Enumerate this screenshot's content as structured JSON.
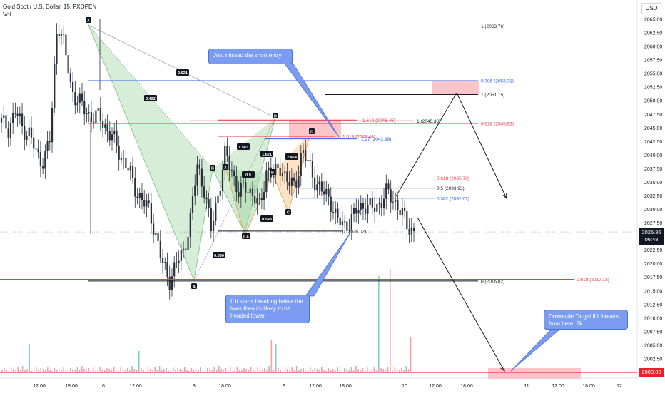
{
  "header": {
    "symbol_line": "Gold Spot / U.S. Dollar, 15, FXOPEN",
    "vol_label": "Vol",
    "currency": "USD"
  },
  "price_tag": {
    "price": "2025.86",
    "countdown": "06:48"
  },
  "floor_tag": "2000.00",
  "colors": {
    "candle": "#2a2e39",
    "fib_blue": "#2962ff",
    "fib_red": "#f23645",
    "pattern_green": "#a5d6a7",
    "pattern_orange": "#ffcc99",
    "zone_pink": "#f8bbc0",
    "callout_blue": "#7b9cf0",
    "volume_red": "#ef5350",
    "volume_green": "#26a69a"
  },
  "chart_data": {
    "type": "candlestick",
    "y_axis": {
      "min": 2000,
      "max": 2065,
      "ticks": [
        "2065.00",
        "2062.50",
        "2060.00",
        "2057.50",
        "2055.00",
        "2052.50",
        "2050.00",
        "2047.50",
        "2045.00",
        "2042.50",
        "2040.00",
        "2037.50",
        "2035.00",
        "2032.50",
        "2030.00",
        "2027.50",
        "2025.00",
        "2022.50",
        "2020.00",
        "2017.50",
        "2015.00",
        "2012.50",
        "2010.00",
        "2007.50",
        "2005.00",
        "2002.50",
        "2000.00"
      ]
    },
    "x_axis": {
      "ticks": [
        "12:00",
        "18:00",
        "6",
        "12:00",
        "8",
        "18:00",
        "9",
        "12:00",
        "18:00",
        "10",
        "12:00",
        "18:00",
        "11",
        "12:00",
        "18:00",
        "12"
      ]
    },
    "price_path": [
      2046,
      2045,
      2048,
      2045,
      2044,
      2040,
      2039,
      2043,
      2065,
      2060,
      2052,
      2050,
      2048,
      2047,
      2047,
      2045,
      2043,
      2040,
      2038,
      2034,
      2032,
      2030,
      2026,
      2020,
      2017,
      2020,
      2022,
      2028,
      2038,
      2034,
      2026,
      2033,
      2040,
      2037,
      2033,
      2034,
      2033,
      2030,
      2038,
      2036,
      2038,
      2035,
      2034,
      2041,
      2038,
      2035,
      2033,
      2032,
      2028,
      2027,
      2028,
      2030,
      2031,
      2030,
      2031,
      2033,
      2032,
      2030,
      2027,
      2026
    ],
    "levels": [
      {
        "label": "1 (2063.76)",
        "value": 2063.76,
        "color": "#131722"
      },
      {
        "label": "0.786 (2053.71)",
        "value": 2053.71,
        "color": "#2962ff"
      },
      {
        "label": "1 (2051.15)",
        "value": 2051.15,
        "color": "#131722"
      },
      {
        "label": "1 (2046.30)",
        "value": 2046.3,
        "color": "#131722"
      },
      {
        "label": "1.618 (2046.45)",
        "value": 2046.45,
        "color": "#f23645"
      },
      {
        "label": "0.618 (2045.83)",
        "value": 2045.83,
        "color": "#f23645"
      },
      {
        "label": "1.618 (2043.46)",
        "value": 2043.46,
        "color": "#f23645"
      },
      {
        "label": "1.27 (2042.99)",
        "value": 2042.99,
        "color": "#2962ff"
      },
      {
        "label": "0.618 (2035.78)",
        "value": 2035.78,
        "color": "#f23645"
      },
      {
        "label": "0.5 (2033.93)",
        "value": 2033.93,
        "color": "#131722"
      },
      {
        "label": "0.382 (2032.07)",
        "value": 2032.07,
        "color": "#2962ff"
      },
      {
        "label": "0 (2026.02)",
        "value": 2026.02,
        "color": "#131722"
      },
      {
        "label": "0.618 (2017.13)",
        "value": 2017.13,
        "color": "#f23645"
      },
      {
        "label": "0 (2016.82)",
        "value": 2016.82,
        "color": "#131722"
      }
    ],
    "pattern_points": [
      "X",
      "A",
      "B",
      "C",
      "D",
      "X",
      "A",
      "B",
      "C",
      "D"
    ],
    "ratio_labels": [
      "0.621",
      "0.422",
      "1.583",
      "1.621",
      "0.9",
      "2.464",
      "0.548",
      "0.536"
    ],
    "annotations": [
      "Just missed the short entry",
      "If it starts breaking below the lows then its likely to be headed lower.",
      "Downside Target if it breaks from here. 2k"
    ]
  }
}
